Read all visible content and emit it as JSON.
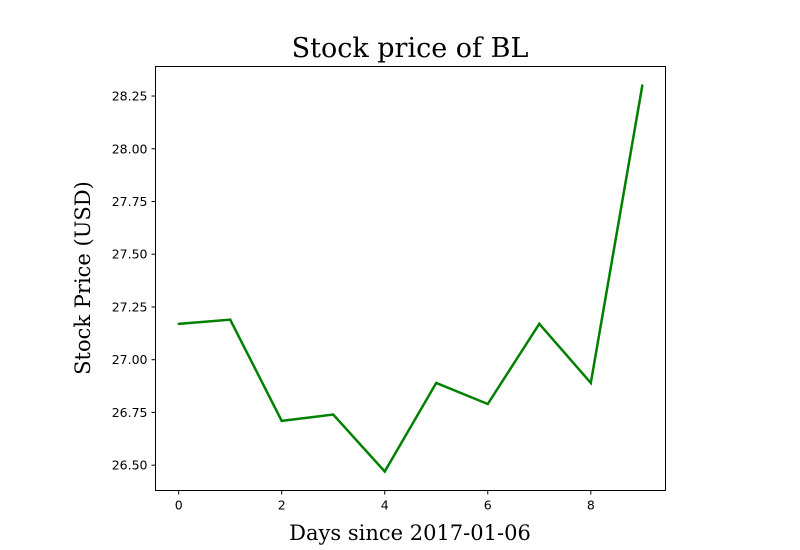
{
  "chart_data": {
    "type": "line",
    "title": "Stock price of BL",
    "xlabel": "Days since 2017-01-06",
    "ylabel": "Stock Price (USD)",
    "x": [
      0,
      1,
      2,
      3,
      4,
      5,
      6,
      7,
      8,
      9
    ],
    "series": [
      {
        "values": [
          27.17,
          27.19,
          26.71,
          26.74,
          26.47,
          26.89,
          26.79,
          27.17,
          26.89,
          28.3
        ],
        "color": "#008000"
      }
    ],
    "xlim": [
      -0.45,
      9.45
    ],
    "ylim": [
      26.38,
      28.39
    ],
    "xticks": [
      0,
      2,
      4,
      6,
      8
    ],
    "yticks": [
      26.5,
      26.75,
      27.0,
      27.25,
      27.5,
      27.75,
      28.0,
      28.25
    ],
    "xtick_labels": [
      "0",
      "2",
      "4",
      "6",
      "8"
    ],
    "ytick_labels": [
      "26.50",
      "26.75",
      "27.00",
      "27.25",
      "27.50",
      "27.75",
      "28.00",
      "28.25"
    ],
    "grid": false,
    "legend": "none"
  }
}
